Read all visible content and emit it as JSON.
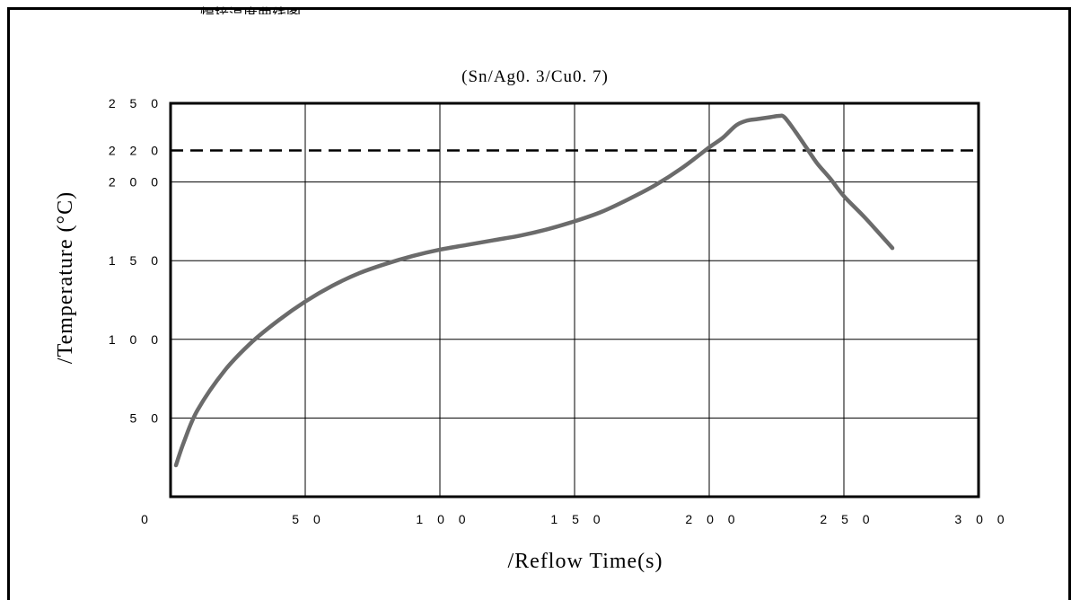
{
  "page": {
    "top_fragment": "焊接温度曲线图"
  },
  "chart_data": {
    "type": "line",
    "title": "(Sn/Ag0. 3/Cu0. 7)",
    "xlabel": "/Reflow Time(s)",
    "ylabel": "/Temperature (°C)",
    "xlim": [
      0,
      300
    ],
    "ylim": [
      0,
      250
    ],
    "y_baseline_label": "0",
    "x_ticks": [
      50,
      100,
      150,
      200,
      250,
      300
    ],
    "x_tick_labels": [
      "5 0",
      "1 0 0",
      "1 5 0",
      "2 0 0",
      "2 5 0",
      "3 0 0"
    ],
    "y_ticks": [
      50,
      100,
      150,
      200,
      250
    ],
    "y_tick_labels": [
      "5 0",
      "1 0 0",
      "1 5 0",
      "2 0 0",
      "2 5 0"
    ],
    "reference_lines": [
      {
        "y": 220,
        "label": "2 2 0",
        "style": "dashed"
      }
    ],
    "grid": true,
    "series": [
      {
        "color": "#6b6b6b",
        "x": [
          2,
          5,
          10,
          20,
          30,
          40,
          50,
          60,
          70,
          80,
          90,
          100,
          110,
          120,
          130,
          140,
          150,
          160,
          170,
          180,
          190,
          200,
          205,
          210,
          214,
          218,
          222,
          226,
          228,
          232,
          236,
          240,
          245,
          250,
          258,
          268
        ],
        "y": [
          20,
          35,
          55,
          80,
          98,
          112,
          124,
          134,
          142,
          148,
          153,
          157,
          160,
          163,
          166,
          170,
          175,
          181,
          189,
          198,
          209,
          222,
          228,
          236,
          239,
          240,
          241,
          242,
          241,
          232,
          222,
          212,
          202,
          191,
          177,
          158
        ]
      }
    ]
  }
}
